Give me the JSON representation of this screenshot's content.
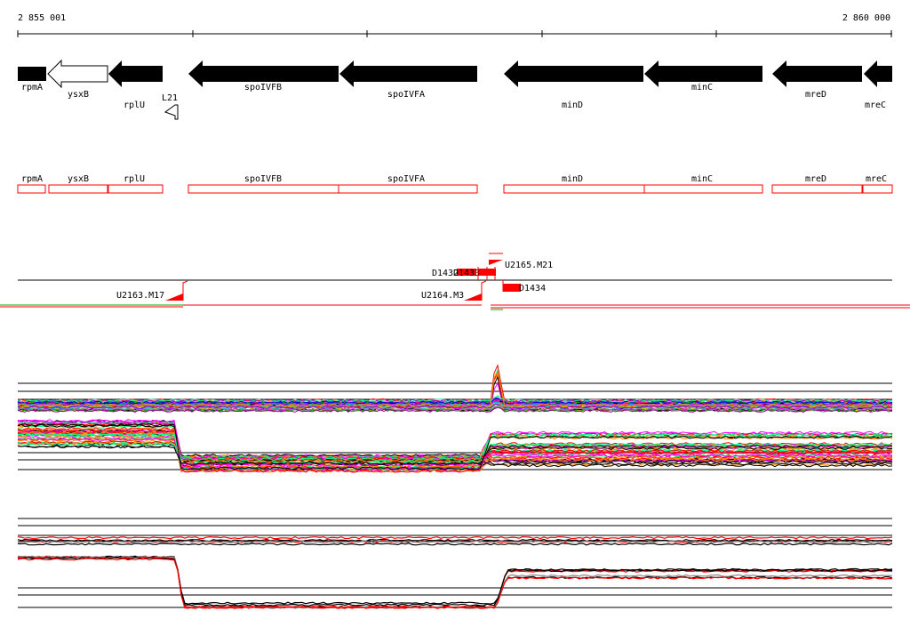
{
  "ruler": {
    "start_label": "2 855 001",
    "end_label": "2 860 000"
  },
  "genes": [
    {
      "name": "rpmA",
      "strand": "-",
      "filled": true
    },
    {
      "name": "ysxB",
      "strand": "-",
      "filled": false
    },
    {
      "name": "rplU",
      "strand": "-",
      "filled": true
    },
    {
      "name": "L21",
      "strand": "-",
      "filled": false
    },
    {
      "name": "spoIVFB",
      "strand": "-",
      "filled": true
    },
    {
      "name": "spoIVFA",
      "strand": "-",
      "filled": true
    },
    {
      "name": "minD",
      "strand": "-",
      "filled": true
    },
    {
      "name": "minC",
      "strand": "-",
      "filled": true
    },
    {
      "name": "mreD",
      "strand": "-",
      "filled": true
    },
    {
      "name": "mreC",
      "strand": "-",
      "filled": true
    }
  ],
  "gene_boxes": [
    "rpmA",
    "ysxB",
    "rplU",
    "spoIVFB",
    "spoIVFA",
    "minD",
    "minC",
    "mreD",
    "mreC"
  ],
  "features": [
    {
      "label": "U2163.M17",
      "kind": "promoter"
    },
    {
      "label": "U2164.M3",
      "kind": "promoter"
    },
    {
      "label": "U2165.M21",
      "kind": "promoter"
    },
    {
      "label": "D1432",
      "kind": "block"
    },
    {
      "label": "D1433",
      "kind": "block"
    },
    {
      "label": "D1434",
      "kind": "block"
    }
  ],
  "colors": {
    "gene_fill": "#000000",
    "gene_box_stroke": "#ff0000",
    "feature_red": "#ff0000",
    "track_green": "#00aa00",
    "track_red": "#ff0000",
    "line_black": "#000000"
  }
}
